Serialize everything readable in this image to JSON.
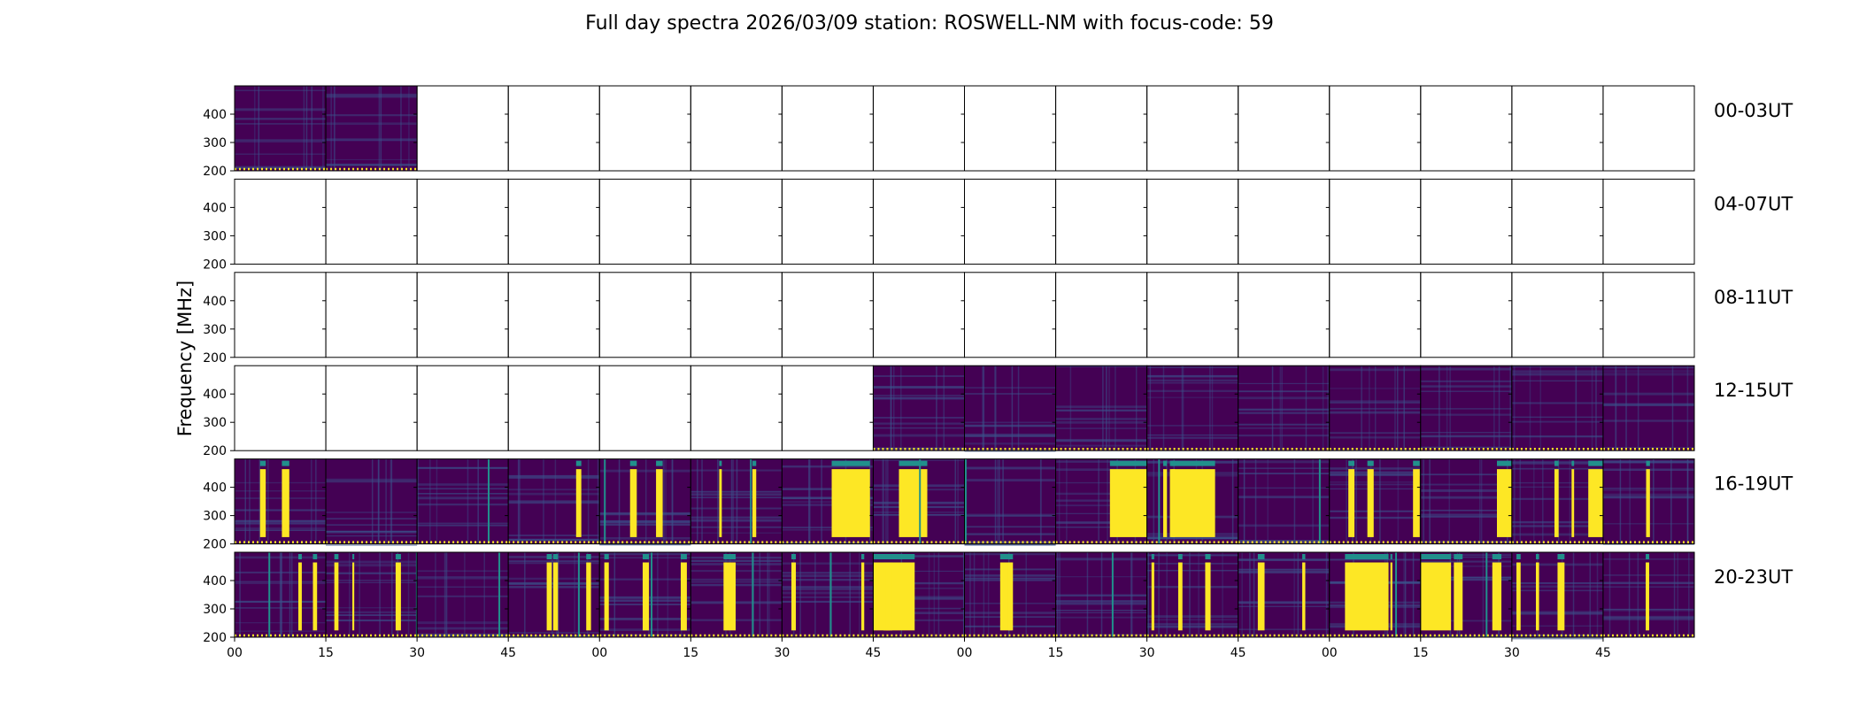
{
  "chart_data": {
    "type": "heatmap",
    "title": "Full day spectra 2026/03/09 station: ROSWELL-NM with focus-code: 59",
    "ylabel": "Frequency [MHz]",
    "xlabel": "",
    "ylim": [
      200,
      500
    ],
    "yticks": [
      200,
      300,
      400
    ],
    "xtick_labels": [
      "00",
      "15",
      "30",
      "45",
      "00",
      "15",
      "30",
      "45",
      "00",
      "15",
      "30",
      "45",
      "00",
      "15",
      "30",
      "45"
    ],
    "panels_per_row": 16,
    "rows": [
      {
        "label": "00-03UT",
        "data": [
          1,
          1,
          0,
          0,
          0,
          0,
          0,
          0,
          0,
          0,
          0,
          0,
          0,
          0,
          0,
          0
        ]
      },
      {
        "label": "04-07UT",
        "data": [
          0,
          0,
          0,
          0,
          0,
          0,
          0,
          0,
          0,
          0,
          0,
          0,
          0,
          0,
          0,
          0
        ]
      },
      {
        "label": "08-11UT",
        "data": [
          0,
          0,
          0,
          0,
          0,
          0,
          0,
          0,
          0,
          0,
          0,
          0,
          0,
          0,
          0,
          0
        ]
      },
      {
        "label": "12-15UT",
        "data": [
          0,
          0,
          0,
          0,
          0,
          0,
          0,
          1,
          1,
          1,
          1,
          1,
          1,
          1,
          1,
          1
        ]
      },
      {
        "label": "16-19UT",
        "data": [
          1,
          1,
          1,
          1,
          1,
          1,
          1,
          1,
          1,
          1,
          1,
          1,
          1,
          1,
          1,
          1
        ]
      },
      {
        "label": "20-23UT",
        "data": [
          1,
          1,
          1,
          1,
          1,
          1,
          1,
          1,
          1,
          1,
          1,
          1,
          1,
          1,
          1,
          1
        ]
      }
    ],
    "colormap": {
      "low": "#440154",
      "mid": "#3b528b",
      "high": "#21908c",
      "peak": "#fde725"
    }
  }
}
